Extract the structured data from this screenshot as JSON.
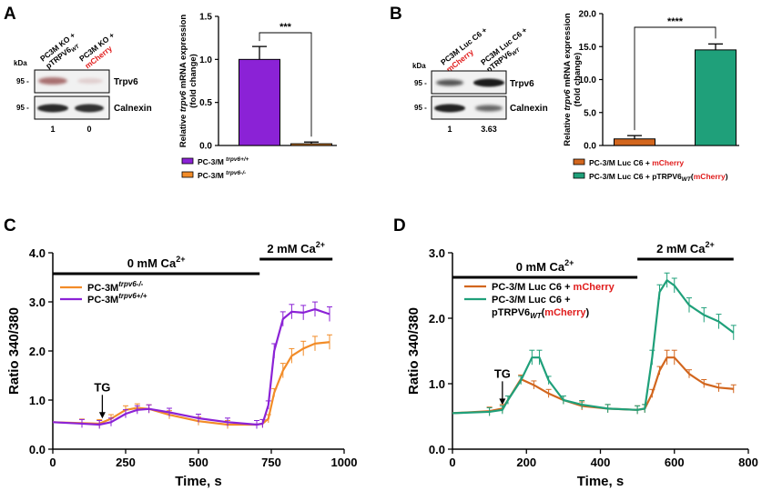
{
  "panel_labels": {
    "A": "A",
    "B": "B",
    "C": "C",
    "D": "D"
  },
  "colors": {
    "purple": "#8B22D6",
    "orange": "#F28C28",
    "green": "#1FA07A",
    "burnt_orange": "#D2661E",
    "red": "#E01B1B",
    "blot_bg": "#f1f1f1"
  },
  "blot_a": {
    "lanes": [
      {
        "line1": "PC3M KO +",
        "line2": "pTRPV6",
        "sub": "WT",
        "red": false
      },
      {
        "line1": "PC3M KO +",
        "line2": "mCherry",
        "sub": "",
        "red": true
      }
    ],
    "kda_label": "kDa",
    "marker_1": "95 -",
    "marker_2": "95 -",
    "band_1_label": "Trpv6",
    "band_2_label": "Calnexin",
    "quant": [
      "1",
      "0"
    ]
  },
  "blot_b": {
    "lanes": [
      {
        "line1": "PC3M Luc C6 +",
        "line2": "mCherry",
        "sub": "",
        "red": true
      },
      {
        "line1": "PC3M Luc C6 +",
        "line2": "pTRPV6",
        "sub": "WT",
        "red": false
      }
    ],
    "kda_label": "kDa",
    "marker_1": "95 -",
    "marker_2": "95 -",
    "band_1_label": "Trpv6",
    "band_2_label": "Calnexin",
    "quant": [
      "1",
      "3.63"
    ]
  },
  "chart_data": [
    {
      "id": "A-bar",
      "type": "bar",
      "ylabel_line1": "Relative trpv6 mRNA expression",
      "ylabel_line2": "(fold change)",
      "ylim": [
        0,
        1.5
      ],
      "yticks": [
        "0.0",
        "0.5",
        "1.0",
        "1.5"
      ],
      "categories": [
        "PC-3/M trpv6+/+",
        "PC-3/M trpv6-/-"
      ],
      "values": [
        1.0,
        0.02
      ],
      "errors": [
        0.15,
        0.02
      ],
      "significance": "***",
      "legend": [
        {
          "main": "PC-3/M ",
          "sup": "trpv6+/+"
        },
        {
          "main": "PC-3/M ",
          "sup": "trpv6-/-"
        }
      ]
    },
    {
      "id": "B-bar",
      "type": "bar",
      "ylabel_line1": "Relative trpv6 mRNA expression",
      "ylabel_line2": "(fold change)",
      "ylim": [
        0,
        20
      ],
      "yticks": [
        "0.0",
        "5.0",
        "10.0",
        "15.0",
        "20.0"
      ],
      "categories": [
        "PC-3/M Luc C6 + mCherry",
        "PC-3/M Luc C6 + pTRPV6WT(mCherry)"
      ],
      "values": [
        1.0,
        14.5
      ],
      "errors": [
        0.5,
        0.9
      ],
      "significance": "****",
      "legend": [
        {
          "main": "PC-3/M Luc C6 + ",
          "red": "mCherry",
          "sub": "",
          "tail": ""
        },
        {
          "main": "PC-3/M Luc C6 + pTRPV6",
          "sub": "WT",
          "red": "mCherry",
          "tail": ""
        }
      ]
    },
    {
      "id": "C-line",
      "type": "line",
      "xlabel": "Time, s",
      "ylabel": "Ratio 340/380",
      "xlim": [
        0,
        1000
      ],
      "ylim": [
        0,
        4.0
      ],
      "xticks": [
        "0",
        "250",
        "500",
        "750",
        "1000"
      ],
      "yticks": [
        "0.0",
        "1.0",
        "2.0",
        "3.0",
        "4.0"
      ],
      "condition_1": {
        "text": "0 mM Ca",
        "sup": "2+",
        "x_start": 0,
        "x_end": 710
      },
      "condition_2": {
        "text": "2 mM Ca",
        "sup": "2+",
        "x_start": 710,
        "x_end": 960
      },
      "annotation": {
        "text": "TG",
        "x": 170,
        "y_tip": 0.55
      },
      "series": [
        {
          "name": "PC-3M",
          "sup": "trpv6-/-",
          "color_key": "orange",
          "x": [
            0,
            100,
            160,
            200,
            250,
            290,
            330,
            400,
            500,
            600,
            700,
            720,
            740,
            760,
            790,
            820,
            860,
            900,
            950
          ],
          "y": [
            0.55,
            0.53,
            0.52,
            0.62,
            0.8,
            0.84,
            0.82,
            0.7,
            0.57,
            0.5,
            0.5,
            0.52,
            0.62,
            1.15,
            1.6,
            1.9,
            2.05,
            2.15,
            2.18
          ]
        },
        {
          "name": "PC-3M",
          "sup": "trpv6+/+",
          "color_key": "purple",
          "x": [
            0,
            100,
            160,
            200,
            250,
            290,
            330,
            400,
            500,
            600,
            700,
            720,
            740,
            760,
            790,
            820,
            860,
            900,
            950
          ],
          "y": [
            0.55,
            0.52,
            0.5,
            0.55,
            0.72,
            0.8,
            0.82,
            0.75,
            0.63,
            0.55,
            0.5,
            0.52,
            0.9,
            2.0,
            2.65,
            2.8,
            2.78,
            2.85,
            2.75
          ]
        }
      ]
    },
    {
      "id": "D-line",
      "type": "line",
      "xlabel": "Time, s",
      "ylabel": "Ratio 340/380",
      "xlim": [
        0,
        800
      ],
      "ylim": [
        0,
        3.0
      ],
      "xticks": [
        "0",
        "200",
        "400",
        "600",
        "800"
      ],
      "yticks": [
        "0.0",
        "1.0",
        "2.0",
        "3.0"
      ],
      "condition_1": {
        "text": "0 mM Ca",
        "sup": "2+",
        "x_start": 0,
        "x_end": 500
      },
      "condition_2": {
        "text": "2 mM Ca",
        "sup": "2+",
        "x_start": 500,
        "x_end": 760
      },
      "annotation": {
        "text": "TG",
        "x": 135,
        "y_tip": 0.62
      },
      "series": [
        {
          "name": "PC-3/M Luc C6 + ",
          "red": "mCherry",
          "color_key": "burnt_orange",
          "x": [
            0,
            100,
            135,
            150,
            185,
            220,
            260,
            300,
            350,
            420,
            500,
            520,
            540,
            560,
            580,
            600,
            640,
            680,
            720,
            760
          ],
          "y": [
            0.55,
            0.58,
            0.62,
            0.75,
            1.07,
            0.98,
            0.85,
            0.75,
            0.66,
            0.62,
            0.6,
            0.62,
            0.85,
            1.2,
            1.4,
            1.4,
            1.15,
            1.0,
            0.94,
            0.92
          ]
        },
        {
          "name": "PC-3/M Luc C6 + ",
          "name2": "pTRPV6",
          "sub": "WT",
          "red": "mCherry",
          "color_key": "green",
          "x": [
            0,
            100,
            135,
            150,
            185,
            215,
            235,
            260,
            300,
            350,
            420,
            500,
            520,
            540,
            560,
            580,
            600,
            640,
            680,
            720,
            760
          ],
          "y": [
            0.55,
            0.57,
            0.6,
            0.75,
            1.05,
            1.4,
            1.4,
            1.05,
            0.75,
            0.68,
            0.62,
            0.6,
            0.62,
            1.4,
            2.4,
            2.58,
            2.5,
            2.2,
            2.05,
            1.95,
            1.78
          ]
        }
      ]
    }
  ]
}
